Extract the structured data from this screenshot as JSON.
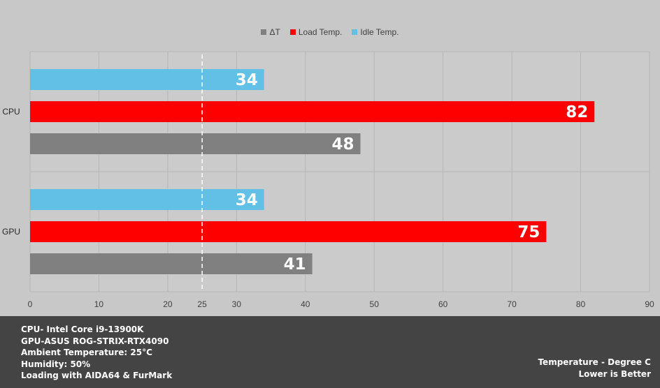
{
  "legend": [
    {
      "name": "ΔT",
      "color": "#808080"
    },
    {
      "name": "Load Temp.",
      "color": "#ff0000"
    },
    {
      "name": "Idle Temp.",
      "color": "#62bfe5"
    }
  ],
  "chart_data": {
    "type": "bar",
    "orientation": "horizontal",
    "categories": [
      "CPU",
      "GPU"
    ],
    "series": [
      {
        "name": "Idle Temp.",
        "color": "#62bfe5",
        "values": [
          34,
          34
        ]
      },
      {
        "name": "Load Temp.",
        "color": "#ff0000",
        "values": [
          82,
          75
        ]
      },
      {
        "name": "ΔT",
        "color": "#808080",
        "values": [
          48,
          41
        ]
      }
    ],
    "xlim": [
      0,
      90
    ],
    "xticks": [
      "0",
      "10",
      "20",
      "25",
      "30",
      "40",
      "50",
      "60",
      "70",
      "80",
      "90"
    ],
    "xtick_values": [
      0,
      10,
      20,
      25,
      30,
      40,
      50,
      60,
      70,
      80,
      90
    ],
    "reference_line": 25,
    "grid": true,
    "legend_position": "top-center"
  },
  "footer": {
    "specs": [
      "CPU- Intel Core i9-13900K",
      "GPU-ASUS ROG-STRIX-RTX4090",
      "Ambient Temperature: 25°C",
      "Humidity: 50%",
      "Loading with AIDA64  & FurMark"
    ],
    "unit_note": "Temperature - Degree C",
    "better_note": "Lower is Better"
  }
}
